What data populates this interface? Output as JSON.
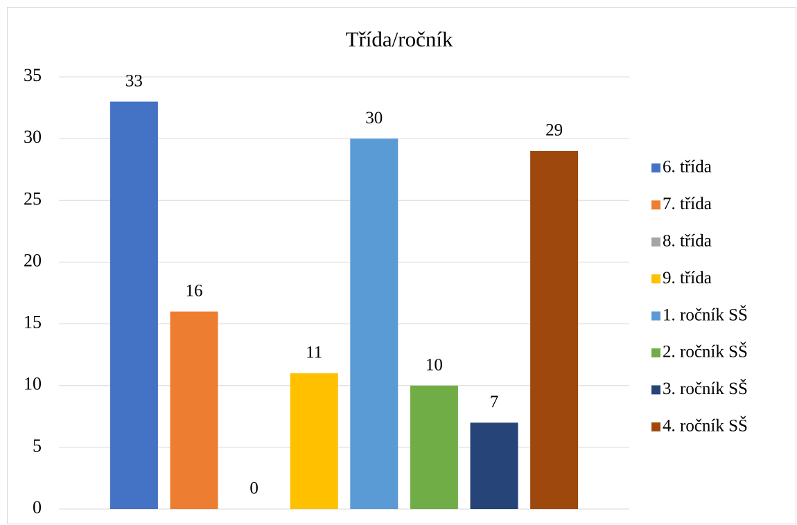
{
  "chart_data": {
    "type": "bar",
    "title": "Třída/ročník",
    "series": [
      {
        "name": "6. třída",
        "color": "#4472c4",
        "values": [
          33
        ]
      },
      {
        "name": "7. třída",
        "color": "#ed7d31",
        "values": [
          16
        ]
      },
      {
        "name": "8. třída",
        "color": "#a5a5a5",
        "values": [
          0
        ]
      },
      {
        "name": "9. třída",
        "color": "#ffc000",
        "values": [
          11
        ]
      },
      {
        "name": "1. ročník SŠ",
        "color": "#5b9bd5",
        "values": [
          30
        ]
      },
      {
        "name": "2. ročník SŠ",
        "color": "#70ad47",
        "values": [
          10
        ]
      },
      {
        "name": "3. ročník SŠ",
        "color": "#264478",
        "values": [
          7
        ]
      },
      {
        "name": "4. ročník SŠ",
        "color": "#9e480e",
        "values": [
          29
        ]
      }
    ],
    "ylim": [
      0,
      35
    ],
    "yticks": [
      0,
      5,
      10,
      15,
      20,
      25,
      30,
      35
    ],
    "grid": true,
    "legend": "right"
  }
}
